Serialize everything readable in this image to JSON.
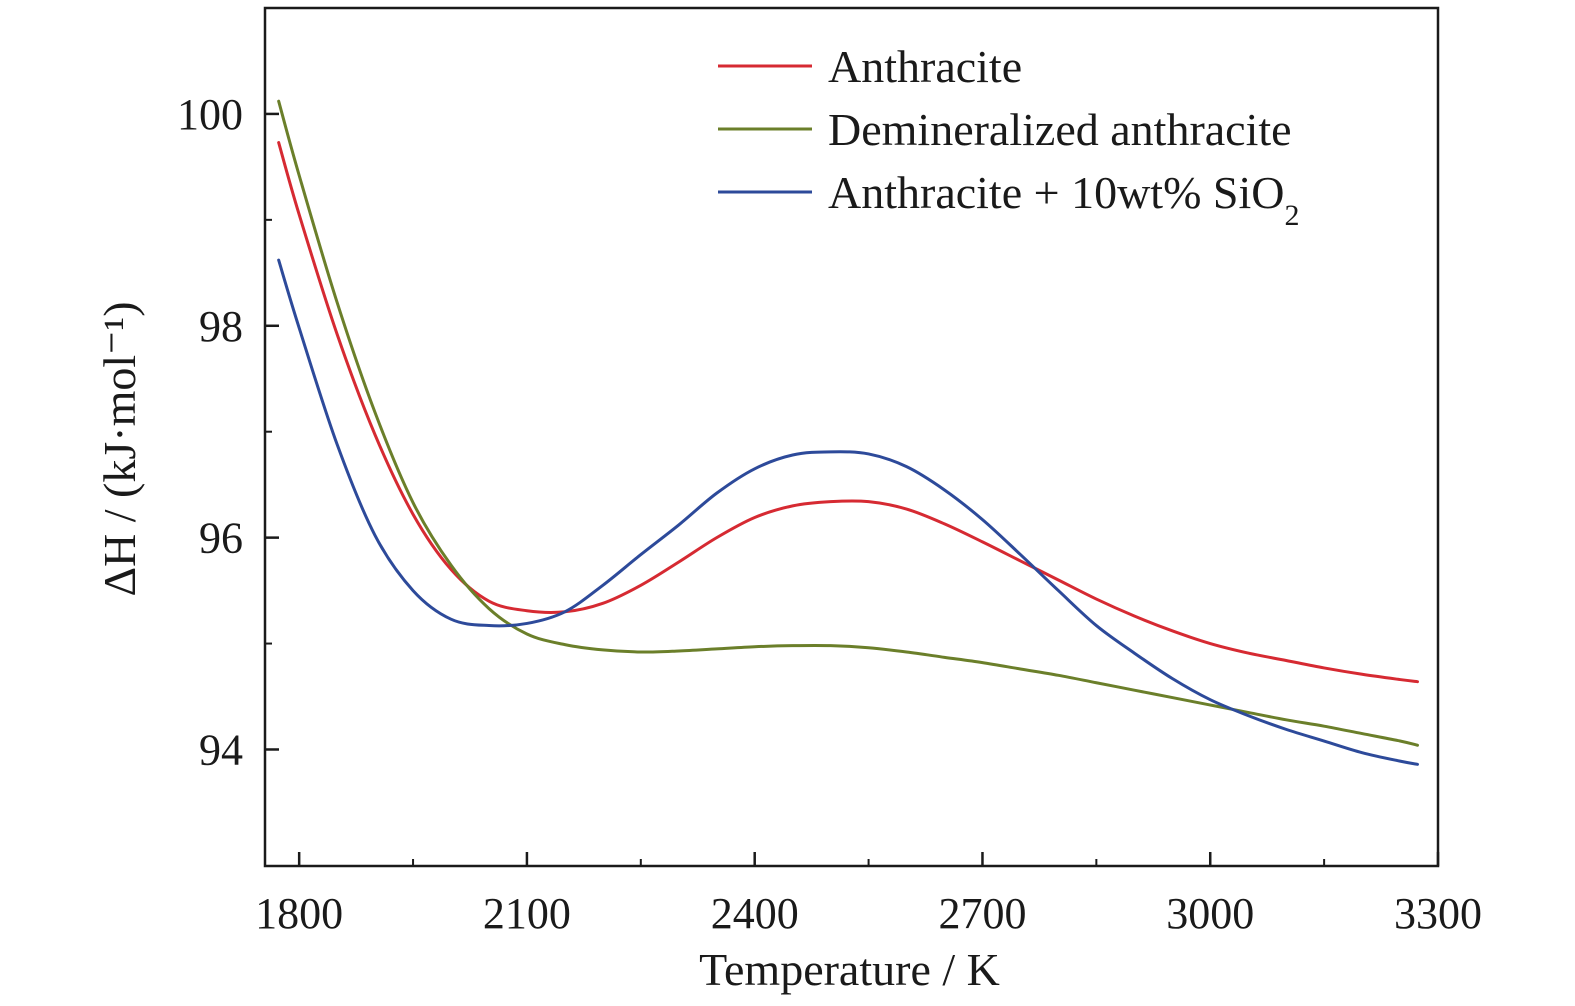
{
  "chart_data": {
    "type": "line",
    "title": "",
    "xlabel": "Temperature / K",
    "ylabel": "ΔH / (kJ·mol⁻¹)",
    "xlim": [
      1755,
      3300
    ],
    "ylim": [
      92.9,
      101.0
    ],
    "x_ticks": [
      1800,
      2100,
      2400,
      2700,
      3000,
      3300
    ],
    "x_minor_ticks": [
      1950,
      2250,
      2550,
      2850,
      3150
    ],
    "y_ticks": [
      94,
      96,
      98,
      100
    ],
    "y_minor_ticks": [
      95,
      97,
      99
    ],
    "grid": false,
    "legend_position": "top-right",
    "series": [
      {
        "name": "Anthracite",
        "color": "#d62a32",
        "x": [
          1773,
          1800,
          1850,
          1900,
          1950,
          2000,
          2050,
          2100,
          2150,
          2200,
          2250,
          2300,
          2350,
          2400,
          2450,
          2500,
          2550,
          2600,
          2650,
          2700,
          2750,
          2800,
          2850,
          2900,
          2950,
          3000,
          3050,
          3100,
          3150,
          3200,
          3250,
          3273
        ],
        "y": [
          99.73,
          99.05,
          97.92,
          96.97,
          96.22,
          95.7,
          95.4,
          95.31,
          95.3,
          95.38,
          95.55,
          95.77,
          96.0,
          96.19,
          96.3,
          96.34,
          96.34,
          96.27,
          96.13,
          95.96,
          95.78,
          95.6,
          95.42,
          95.26,
          95.12,
          95.0,
          94.91,
          94.84,
          94.77,
          94.71,
          94.66,
          94.64
        ]
      },
      {
        "name": "Demineralized anthracite",
        "color": "#6b7f2a",
        "x": [
          1773,
          1800,
          1850,
          1900,
          1950,
          2000,
          2050,
          2100,
          2150,
          2200,
          2250,
          2300,
          2350,
          2400,
          2450,
          2500,
          2550,
          2600,
          2650,
          2700,
          2750,
          2800,
          2850,
          2900,
          2950,
          3000,
          3050,
          3100,
          3150,
          3200,
          3250,
          3273
        ],
        "y": [
          100.12,
          99.42,
          98.22,
          97.18,
          96.33,
          95.74,
          95.33,
          95.09,
          94.99,
          94.94,
          94.92,
          94.93,
          94.95,
          94.97,
          94.98,
          94.98,
          94.96,
          94.92,
          94.87,
          94.82,
          94.76,
          94.7,
          94.63,
          94.56,
          94.49,
          94.42,
          94.35,
          94.28,
          94.22,
          94.15,
          94.08,
          94.04
        ]
      },
      {
        "name": "Anthracite + 10wt% SiO2",
        "color": "#2d4a9a",
        "x": [
          1773,
          1800,
          1850,
          1900,
          1950,
          2000,
          2050,
          2100,
          2150,
          2200,
          2250,
          2300,
          2350,
          2400,
          2450,
          2500,
          2550,
          2600,
          2650,
          2700,
          2750,
          2800,
          2850,
          2900,
          2950,
          3000,
          3050,
          3100,
          3150,
          3200,
          3250,
          3273
        ],
        "y": [
          98.62,
          97.98,
          96.88,
          96.02,
          95.5,
          95.23,
          95.17,
          95.19,
          95.3,
          95.55,
          95.84,
          96.12,
          96.42,
          96.65,
          96.78,
          96.81,
          96.79,
          96.67,
          96.45,
          96.17,
          95.84,
          95.5,
          95.17,
          94.91,
          94.67,
          94.47,
          94.32,
          94.19,
          94.08,
          93.97,
          93.89,
          93.86
        ]
      }
    ]
  }
}
